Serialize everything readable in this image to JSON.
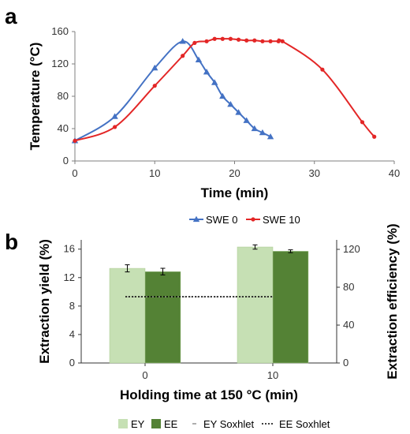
{
  "panels": {
    "a": {
      "letter": "a"
    },
    "b": {
      "letter": "b"
    }
  },
  "chart_data": [
    {
      "panel": "a",
      "type": "line",
      "xlabel": "Time (min)",
      "ylabel": "Temperature (°C)",
      "xlim": [
        0,
        40
      ],
      "ylim": [
        0,
        160
      ],
      "xticks": [
        "0",
        "10",
        "20",
        "30",
        "40"
      ],
      "yticks": [
        "0",
        "40",
        "80",
        "120",
        "160"
      ],
      "grid": false,
      "legend_position": "bottom",
      "series": [
        {
          "name": "SWE 0",
          "color": "#4472C4",
          "marker": "triangle",
          "x": [
            0,
            5,
            10,
            13.5,
            15.5,
            16.5,
            17.5,
            18.5,
            19.5,
            20.5,
            21.5,
            22.5,
            23.5,
            24.5
          ],
          "y": [
            25,
            55,
            115,
            148,
            125,
            110,
            97,
            80,
            70,
            60,
            50,
            40,
            35,
            30
          ]
        },
        {
          "name": "SWE 10",
          "color": "#E32626",
          "marker": "circle",
          "x": [
            0,
            5,
            10,
            13.5,
            15,
            16.5,
            17.5,
            18.5,
            19.5,
            20.5,
            21.5,
            22.5,
            23.5,
            24.5,
            25.5,
            26,
            31,
            36,
            37.5
          ],
          "y": [
            25,
            42,
            93,
            130,
            146,
            148,
            151,
            151,
            151,
            150,
            149,
            149,
            148,
            148,
            148,
            148,
            113,
            48,
            30
          ]
        }
      ]
    },
    {
      "panel": "b",
      "type": "bar",
      "xlabel": "Holding time at 150 °C (min)",
      "ylabel": "Extraction yield (%)",
      "y2label": "Extraction efficiency (%)",
      "categories": [
        "0",
        "10"
      ],
      "ylim": [
        0,
        17.3
      ],
      "y2lim": [
        0,
        130
      ],
      "yticks": [
        "0",
        "4",
        "8",
        "12",
        "16"
      ],
      "y2ticks": [
        "0",
        "40",
        "80",
        "120"
      ],
      "grid": false,
      "legend_position": "bottom",
      "series": [
        {
          "name": "EY",
          "axis": "left",
          "color": "#C6E0B4",
          "values": [
            13.3,
            16.3
          ],
          "errors": [
            0.5,
            0.3
          ]
        },
        {
          "name": "EE",
          "axis": "right",
          "color": "#548235",
          "values": [
            96.5,
            118
          ],
          "errors": [
            3.5,
            1.5
          ]
        }
      ],
      "reference_lines": [
        {
          "name": "EY Soxhlet",
          "axis": "left",
          "value": 9.3,
          "style": "dashed",
          "color": "#999999"
        },
        {
          "name": "EE Soxhlet",
          "axis": "right",
          "value": 70,
          "style": "dotted",
          "color": "#000000"
        }
      ]
    }
  ]
}
